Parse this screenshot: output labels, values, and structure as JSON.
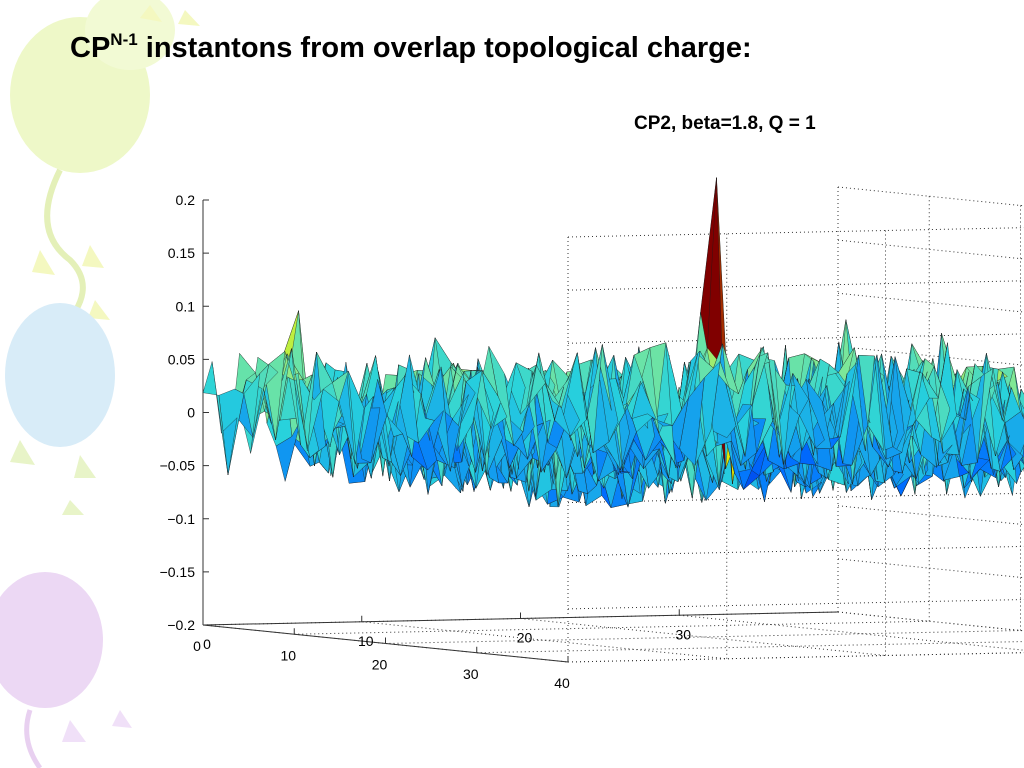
{
  "slide": {
    "title_prefix": "CP",
    "title_superscript": "N-1",
    "title_rest": " instantons from overlap topological charge:"
  },
  "colors": {
    "surface_low": "#0000c8",
    "surface_mid": "#30d8d8",
    "surface_high": "#e8f000",
    "peak": "#800000",
    "balloon_green": "#eef8c8",
    "balloon_blue": "#d8ecf8",
    "balloon_purple": "#ecd8f4"
  },
  "chart_data": {
    "type": "surface",
    "title": "CP2, beta=1.8, Q = 1",
    "zlim": [
      -0.2,
      0.2
    ],
    "z_ticks": [
      0.2,
      0.15,
      0.1,
      0.05,
      0,
      -0.05,
      -0.1,
      -0.15,
      -0.2
    ],
    "z_tick_labels": [
      "0.2",
      "0.15",
      "0.1",
      "0.05",
      "0",
      "−0.05",
      "−0.1",
      "−0.15",
      "−0.2"
    ],
    "x_range": [
      0,
      40
    ],
    "x_ticks": [
      0,
      10,
      20,
      30,
      40
    ],
    "x_tick_labels": [
      "0",
      "10",
      "20",
      "30",
      "40"
    ],
    "y_range": [
      0,
      40
    ],
    "y_ticks": [
      0,
      10,
      20,
      30
    ],
    "y_tick_labels": [
      "0",
      "10",
      "20",
      "30"
    ],
    "grid": true,
    "surface": {
      "description": "Noisy 2D topological charge density on a 40x40 lattice, values mostly in -0.1 to 0.1",
      "baseline": 0.0,
      "noise_amplitude": 0.06,
      "peak": {
        "x": 18,
        "y": 22,
        "z": 0.23
      }
    }
  }
}
